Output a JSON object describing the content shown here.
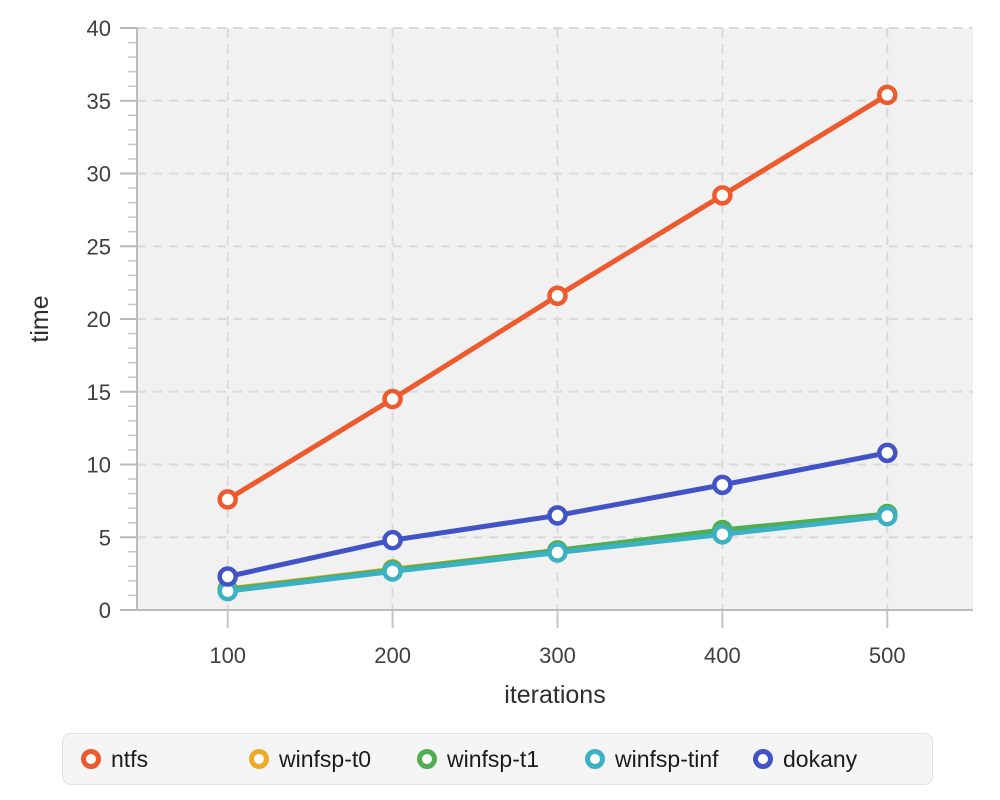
{
  "chart_data": {
    "type": "line",
    "title": "",
    "xlabel": "iterations",
    "ylabel": "time",
    "x": [
      100,
      200,
      300,
      400,
      500
    ],
    "xlim": [
      45,
      552
    ],
    "ylim": [
      0,
      40
    ],
    "xticks": [
      100,
      200,
      300,
      400,
      500
    ],
    "yticks": [
      0,
      5,
      10,
      15,
      20,
      25,
      30,
      35,
      40
    ],
    "y_minor_tick_step": 1,
    "grid": "dashed",
    "legend_position": "bottom",
    "marker_style": "open-circle",
    "series": [
      {
        "name": "ntfs",
        "color": "#ed5a2d",
        "values": [
          7.6,
          14.5,
          21.6,
          28.5,
          35.4
        ]
      },
      {
        "name": "winfsp-t0",
        "color": "#edaa28",
        "values": [
          1.45,
          2.8,
          4.1,
          5.4,
          6.5
        ]
      },
      {
        "name": "winfsp-t1",
        "color": "#4fae50",
        "values": [
          1.4,
          2.75,
          4.1,
          5.5,
          6.6
        ]
      },
      {
        "name": "winfsp-tinf",
        "color": "#3cb1c3",
        "values": [
          1.3,
          2.65,
          3.95,
          5.2,
          6.45
        ]
      },
      {
        "name": "dokany",
        "color": "#4254c5",
        "values": [
          2.3,
          4.8,
          6.5,
          8.6,
          10.8
        ]
      }
    ]
  },
  "colors": {
    "panel_bg": "#f1f1f2",
    "grid": "#d9d9d9",
    "axis_line": "#bcbcbc",
    "major_tick": "#b9b9b9",
    "minor_tick": "#c6c6c6",
    "marker_fill": "#ffffff"
  }
}
